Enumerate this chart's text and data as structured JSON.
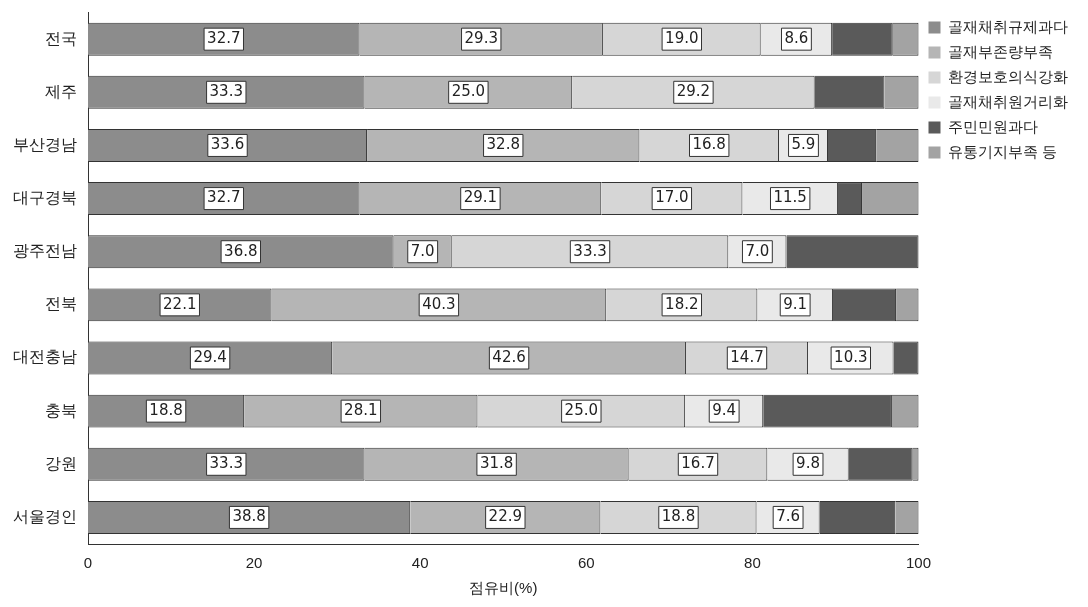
{
  "chart_data": {
    "type": "bar",
    "orientation": "horizontal",
    "stacked": true,
    "xlabel": "점유비(%)",
    "categories": [
      "전국",
      "제주",
      "부산경남",
      "대구경북",
      "광주전남",
      "전북",
      "대전충남",
      "충북",
      "강원",
      "서울경인"
    ],
    "xlim": [
      0,
      100
    ],
    "xticks": [
      0,
      20,
      40,
      60,
      80,
      100
    ],
    "grid": false,
    "legend": "right",
    "series": [
      {
        "name": "골재채취규제과다",
        "color": "#8c8c8c",
        "values": [
          32.7,
          33.3,
          33.6,
          32.7,
          36.8,
          22.1,
          29.4,
          18.8,
          33.3,
          38.8
        ],
        "value_labels": [
          "32.7",
          "33.3",
          "33.6",
          "32.7",
          "36.8",
          "22.1",
          "29.4",
          "18.8",
          "33.3",
          "38.8"
        ]
      },
      {
        "name": "골재부존량부족",
        "color": "#b5b5b5",
        "values": [
          29.3,
          25.0,
          32.8,
          29.1,
          7.0,
          40.3,
          42.6,
          28.1,
          31.8,
          22.9
        ],
        "value_labels": [
          "29.3",
          "25.0",
          "32.8",
          "29.1",
          "7.0",
          "40.3",
          "42.6",
          "28.1",
          "31.8",
          "22.9"
        ]
      },
      {
        "name": "환경보호의식강화",
        "color": "#d6d6d6",
        "values": [
          19.0,
          29.2,
          16.8,
          17.0,
          33.3,
          18.2,
          14.7,
          25.0,
          16.7,
          18.8
        ],
        "value_labels": [
          "19.0",
          "29.2",
          "16.8",
          "17.0",
          "33.3",
          "18.2",
          "14.7",
          "25.0",
          "16.7",
          "18.8"
        ]
      },
      {
        "name": "골재채취원거리화",
        "color": "#e9e9e9",
        "values": [
          8.6,
          null,
          5.9,
          11.5,
          7.0,
          9.1,
          10.3,
          9.4,
          9.8,
          7.6
        ],
        "value_labels": [
          "8.6",
          null,
          "5.9",
          "11.5",
          "7.0",
          "9.1",
          "10.3",
          "9.4",
          "9.8",
          "7.6"
        ]
      },
      {
        "name": "주민민원과다",
        "color": "#5a5a5a",
        "values": [
          7.3,
          8.4,
          5.8,
          2.9,
          15.9,
          7.6,
          3.0,
          15.5,
          7.7,
          9.1
        ]
      },
      {
        "name": "유통기지부족 등",
        "color": "#a3a3a3",
        "values": [
          3.1,
          4.1,
          5.1,
          6.8,
          null,
          2.7,
          null,
          3.2,
          0.7,
          2.8
        ]
      }
    ]
  }
}
